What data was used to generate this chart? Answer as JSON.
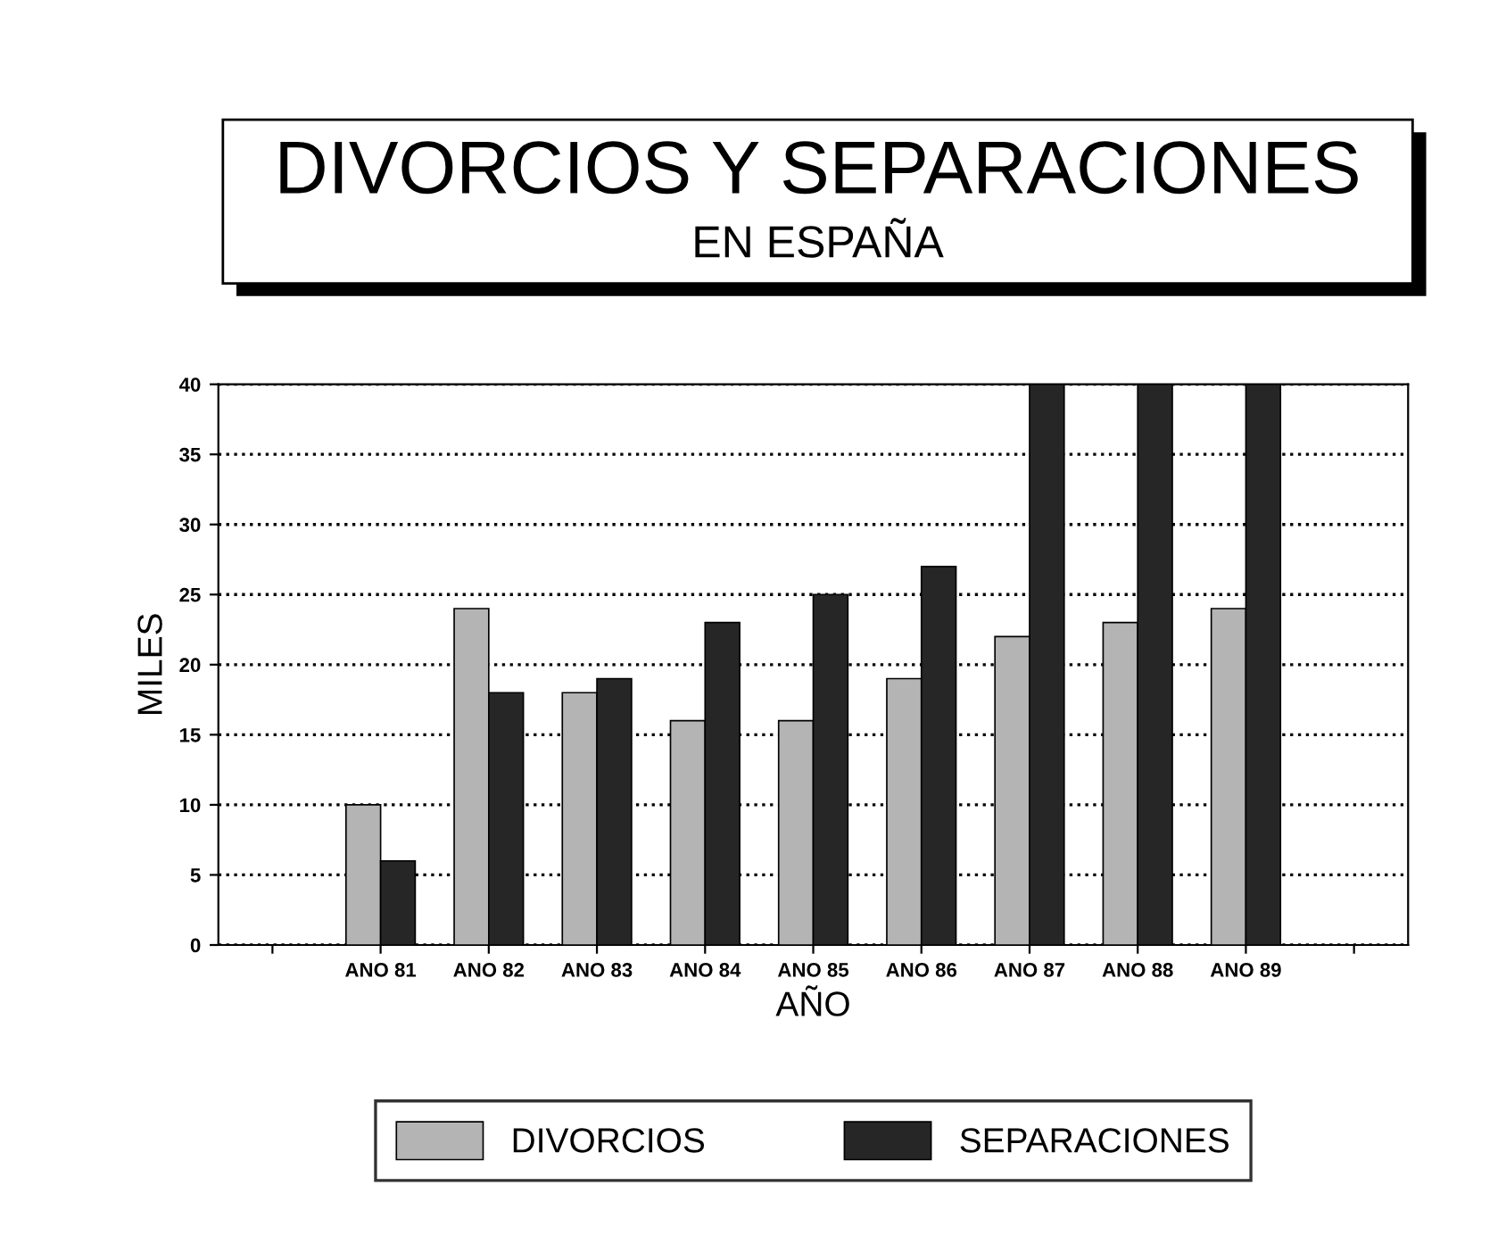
{
  "chart_data": {
    "type": "bar",
    "title": "DIVORCIOS Y SEPARACIONES",
    "subtitle": "EN ESPAÑA",
    "xlabel": "AÑO",
    "ylabel": "MILES",
    "categories": [
      null,
      "ANO 81",
      "ANO 82",
      "ANO 83",
      "ANO 84",
      "ANO 85",
      "ANO 86",
      "ANO 87",
      "ANO 88",
      "ANO 89",
      null
    ],
    "series": [
      {
        "name": "DIVORCIOS",
        "color": "#b4b4b4",
        "values": [
          null,
          10,
          24,
          18,
          16,
          16,
          19,
          22,
          23,
          24,
          null
        ]
      },
      {
        "name": "SEPARACIONES",
        "color": "#262626",
        "values": [
          null,
          6,
          18,
          19,
          23,
          25,
          27,
          40,
          40,
          40,
          null
        ]
      }
    ],
    "ylim": [
      0,
      40
    ],
    "yticks": [
      0,
      5,
      10,
      15,
      20,
      25,
      30,
      35,
      40
    ],
    "grid": "y",
    "legend": "bottom"
  }
}
